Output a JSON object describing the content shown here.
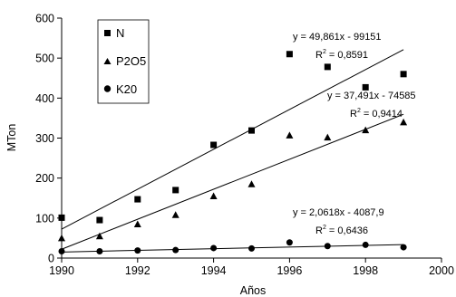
{
  "chart_data": {
    "type": "scatter",
    "xlabel": "Años",
    "ylabel": "MTon",
    "xlim": [
      1990,
      2000
    ],
    "ylim": [
      0,
      600
    ],
    "xticks": [
      "1990",
      "1992",
      "1994",
      "1996",
      "1998",
      "2000"
    ],
    "yticks": [
      "0",
      "100",
      "200",
      "300",
      "400",
      "500",
      "600"
    ],
    "grid": false,
    "legend_position": "top-left",
    "series": [
      {
        "name": "N",
        "marker": "square",
        "x": [
          1990,
          1991,
          1992,
          1993,
          1994,
          1995,
          1996,
          1997,
          1998,
          1999
        ],
        "y": [
          101,
          95,
          147,
          170,
          283,
          319,
          510,
          478,
          427,
          460
        ],
        "trendline": {
          "slope": 49.861,
          "intercept": -99151
        },
        "equation": "y = 49,861x - 99151",
        "r2_prefix": "R",
        "r2_value": " = 0,8591"
      },
      {
        "name": "P2O5",
        "marker": "triangle",
        "x": [
          1990,
          1991,
          1992,
          1993,
          1994,
          1995,
          1996,
          1997,
          1998,
          1999
        ],
        "y": [
          50,
          55,
          85,
          108,
          155,
          185,
          307,
          302,
          320,
          340
        ],
        "trendline": {
          "slope": 37.491,
          "intercept": -74585
        },
        "equation": "y = 37,491x - 74585",
        "r2_prefix": "R",
        "r2_value": " = 0,9414"
      },
      {
        "name": "K20",
        "marker": "circle",
        "x": [
          1990,
          1991,
          1992,
          1993,
          1994,
          1995,
          1996,
          1997,
          1998,
          1999
        ],
        "y": [
          17,
          17,
          19,
          20,
          25,
          24,
          39,
          30,
          33,
          27
        ],
        "trendline": {
          "slope": 2.0618,
          "intercept": -4087.9
        },
        "equation": "y = 2,0618x - 4087,9",
        "r2_prefix": "R",
        "r2_value": " = 0,6436"
      }
    ]
  }
}
